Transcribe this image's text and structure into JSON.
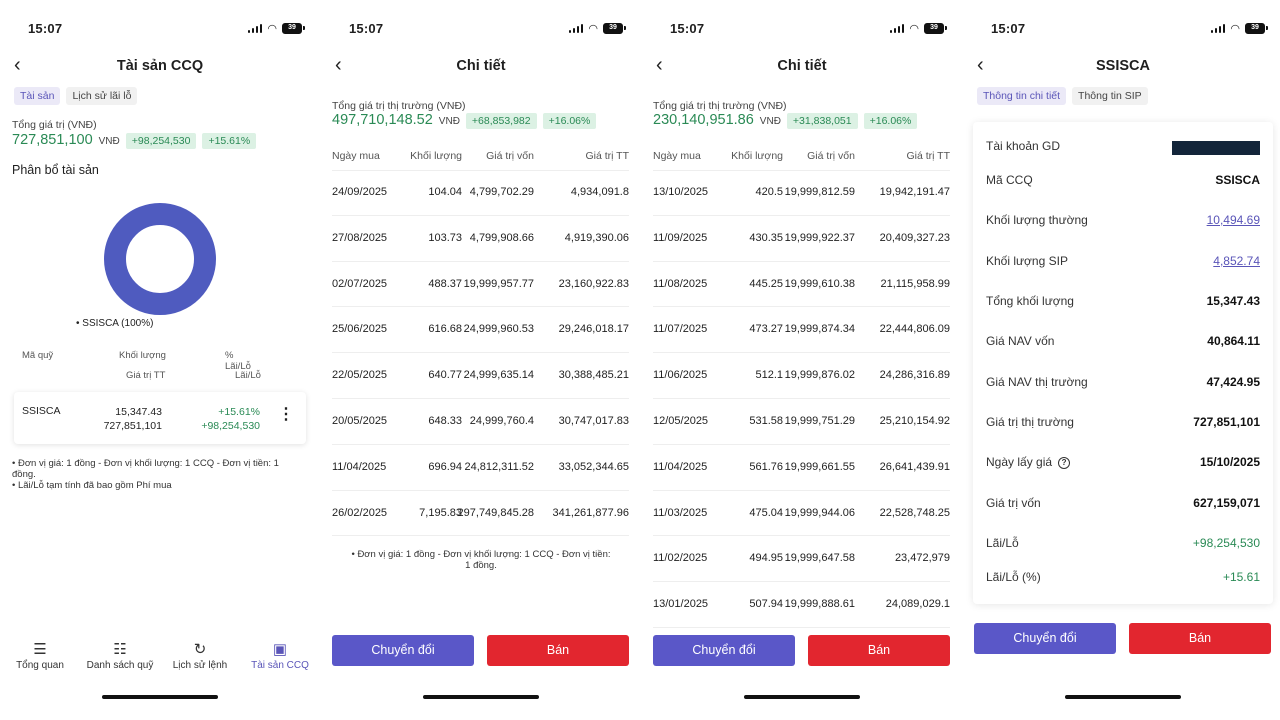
{
  "status": {
    "time": "15:07",
    "battery": "39"
  },
  "screen1": {
    "title": "Tài sản CCQ",
    "tabs": [
      "Tài sản",
      "Lịch sử lãi lỗ"
    ],
    "total_label": "Tổng giá trị (VNĐ)",
    "total_value": "727,851,100",
    "total_unit": "VNĐ",
    "gain": "+98,254,530",
    "gain_pct": "+15.61%",
    "alloc_title": "Phân bổ tài sản",
    "donut_legend": "• SSISCA (100%)",
    "donut_share": 1.0,
    "donut_color": "#4f5bbf",
    "headers": {
      "fund": "Mã quỹ",
      "volume": "Khối lượng",
      "value": "Giá trị TT",
      "pnl_pct": "% Lãi/Lỗ",
      "pnl": "Lãi/Lỗ"
    },
    "holding": {
      "code": "SSISCA",
      "volume": "15,347.43",
      "value": "727,851,101",
      "pnl_pct": "+15.61%",
      "pnl": "+98,254,530"
    },
    "notes": [
      "• Đơn vị giá: 1 đồng - Đơn vị khối lượng: 1 CCQ - Đơn vị tiền: 1 đồng.",
      "• Lãi/Lỗ tạm tính đã bao gồm Phí mua"
    ],
    "bottom_nav": [
      {
        "label": "Tổng quan",
        "icon": "chart-icon"
      },
      {
        "label": "Danh sách quỹ",
        "icon": "list-icon"
      },
      {
        "label": "Lịch sử lệnh",
        "icon": "history-icon"
      },
      {
        "label": "Tài sản CCQ",
        "icon": "wallet-icon"
      }
    ]
  },
  "screen2": {
    "title": "Chi tiết",
    "total_label": "Tổng giá trị thị trường (VNĐ)",
    "total_value": "497,710,148.52",
    "total_unit": "VNĐ",
    "gain": "+68,853,982",
    "gain_pct": "+16.06%",
    "columns": [
      "Ngày mua",
      "Khối lượng",
      "Giá trị vốn",
      "Giá trị TT"
    ],
    "rows": [
      [
        "24/09/2025",
        "104.04",
        "4,799,702.29",
        "4,934,091.8"
      ],
      [
        "27/08/2025",
        "103.73",
        "4,799,908.66",
        "4,919,390.06"
      ],
      [
        "02/07/2025",
        "488.37",
        "19,999,957.77",
        "23,160,922.83"
      ],
      [
        "25/06/2025",
        "616.68",
        "24,999,960.53",
        "29,246,018.17"
      ],
      [
        "22/05/2025",
        "640.77",
        "24,999,635.14",
        "30,388,485.21"
      ],
      [
        "20/05/2025",
        "648.33",
        "24,999,760.4",
        "30,747,017.83"
      ],
      [
        "11/04/2025",
        "696.94",
        "24,812,311.52",
        "33,052,344.65"
      ],
      [
        "26/02/2025",
        "7,195.83",
        "297,749,845.28",
        "341,261,877.96"
      ]
    ],
    "note": "• Đơn vị giá: 1 đồng - Đơn vị khối lượng: 1 CCQ - Đơn vị tiền: 1 đồng.",
    "convert_label": "Chuyển đổi",
    "sell_label": "Bán"
  },
  "screen3": {
    "title": "Chi tiết",
    "total_label": "Tổng giá trị thị trường (VNĐ)",
    "total_value": "230,140,951.86",
    "total_unit": "VNĐ",
    "gain": "+31,838,051",
    "gain_pct": "+16.06%",
    "columns": [
      "Ngày mua",
      "Khối lượng",
      "Giá trị vốn",
      "Giá trị TT"
    ],
    "rows": [
      [
        "13/10/2025",
        "420.5",
        "19,999,812.59",
        "19,942,191.47"
      ],
      [
        "11/09/2025",
        "430.35",
        "19,999,922.37",
        "20,409,327.23"
      ],
      [
        "11/08/2025",
        "445.25",
        "19,999,610.38",
        "21,115,958.99"
      ],
      [
        "11/07/2025",
        "473.27",
        "19,999,874.34",
        "22,444,806.09"
      ],
      [
        "11/06/2025",
        "512.1",
        "19,999,876.02",
        "24,286,316.89"
      ],
      [
        "12/05/2025",
        "531.58",
        "19,999,751.29",
        "25,210,154.92"
      ],
      [
        "11/04/2025",
        "561.76",
        "19,999,661.55",
        "26,641,439.91"
      ],
      [
        "11/03/2025",
        "475.04",
        "19,999,944.06",
        "22,528,748.25"
      ],
      [
        "11/02/2025",
        "494.95",
        "19,999,647.58",
        "23,472,979"
      ],
      [
        "13/01/2025",
        "507.94",
        "19,999,888.61",
        "24,089,029.1"
      ]
    ],
    "convert_label": "Chuyển đổi",
    "sell_label": "Bán"
  },
  "screen4": {
    "title": "SSISCA",
    "tabs": [
      "Thông tin chi tiết",
      "Thông tin SIP"
    ],
    "account_label": "Tài khoản GD",
    "items": [
      {
        "label": "Mã CCQ",
        "value": "SSISCA"
      },
      {
        "label": "Khối lượng thường",
        "value": "10,494.69"
      },
      {
        "label": "Khối lượng SIP",
        "value": "4,852.74"
      },
      {
        "label": "Tổng khối lượng",
        "value": "15,347.43"
      },
      {
        "label": "Giá NAV vốn",
        "value": "40,864.11"
      },
      {
        "label": "Giá NAV thị trường",
        "value": "47,424.95"
      },
      {
        "label": "Giá trị thị trường",
        "value": "727,851,101"
      },
      {
        "label": "Ngày lấy giá",
        "value": "15/10/2025"
      },
      {
        "label": "Giá trị vốn",
        "value": "627,159,071"
      },
      {
        "label": "Lãi/Lỗ",
        "value": "+98,254,530"
      },
      {
        "label": "Lãi/Lỗ (%)",
        "value": "+15.61"
      }
    ],
    "convert_label": "Chuyển đổi",
    "sell_label": "Bán"
  },
  "colors": {
    "accent": "#5a57c8",
    "gain": "#2a8a55",
    "sell": "#e2262f",
    "donut": "#4f5bbf"
  }
}
